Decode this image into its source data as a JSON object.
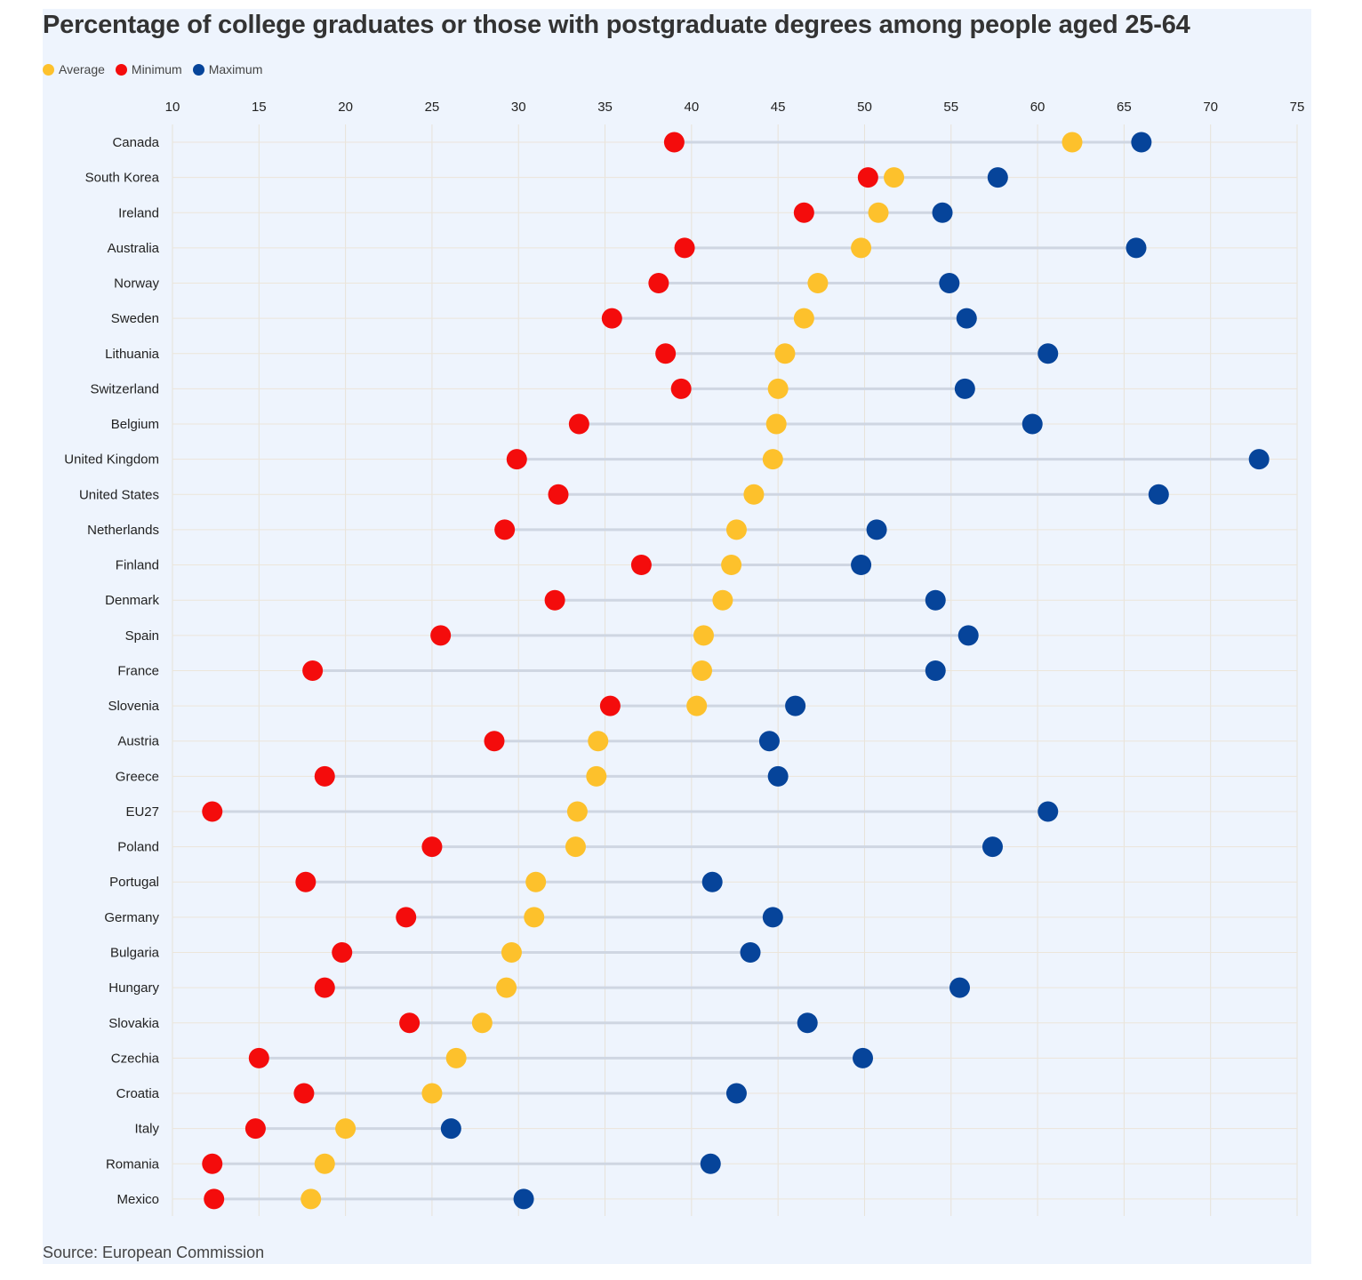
{
  "chart_data": {
    "type": "dumbbell",
    "title": "Percentage of college graduates or those with postgraduate degrees among people aged 25-64",
    "source": "Source: European Commission",
    "xlim": [
      10,
      75
    ],
    "xticks": [
      10,
      15,
      20,
      25,
      30,
      35,
      40,
      45,
      50,
      55,
      60,
      65,
      70,
      75
    ],
    "legend": [
      {
        "name": "Average",
        "color": "#fdc12c"
      },
      {
        "name": "Minimum",
        "color": "#f40c0c"
      },
      {
        "name": "Maximum",
        "color": "#06449a"
      }
    ],
    "categories": [
      "Canada",
      "South Korea",
      "Ireland",
      "Australia",
      "Norway",
      "Sweden",
      "Lithuania",
      "Switzerland",
      "Belgium",
      "United Kingdom",
      "United States",
      "Netherlands",
      "Finland",
      "Denmark",
      "Spain",
      "France",
      "Slovenia",
      "Austria",
      "Greece",
      "EU27",
      "Poland",
      "Portugal",
      "Germany",
      "Bulgaria",
      "Hungary",
      "Slovakia",
      "Czechia",
      "Croatia",
      "Italy",
      "Romania",
      "Mexico"
    ],
    "series": [
      {
        "name": "Average",
        "values": [
          62.0,
          51.7,
          50.8,
          49.8,
          47.3,
          46.5,
          45.4,
          45.0,
          44.9,
          44.7,
          43.6,
          42.6,
          42.3,
          41.8,
          40.7,
          40.6,
          40.3,
          34.6,
          34.5,
          33.4,
          33.3,
          31.0,
          30.9,
          29.6,
          29.3,
          27.9,
          26.4,
          25.0,
          20.0,
          18.8,
          18.0
        ]
      },
      {
        "name": "Minimum",
        "values": [
          39.0,
          50.2,
          46.5,
          39.6,
          38.1,
          35.4,
          38.5,
          39.4,
          33.5,
          29.9,
          32.3,
          29.2,
          37.1,
          32.1,
          25.5,
          18.1,
          35.3,
          28.6,
          18.8,
          12.3,
          25.0,
          17.7,
          23.5,
          19.8,
          18.8,
          23.7,
          15.0,
          17.6,
          14.8,
          12.3,
          12.4
        ]
      },
      {
        "name": "Maximum",
        "values": [
          66.0,
          57.7,
          54.5,
          65.7,
          54.9,
          55.9,
          60.6,
          55.8,
          59.7,
          72.8,
          67.0,
          50.7,
          49.8,
          54.1,
          56.0,
          54.1,
          46.0,
          44.5,
          45.0,
          60.6,
          57.4,
          41.2,
          44.7,
          43.4,
          55.5,
          46.7,
          49.9,
          42.6,
          26.1,
          41.1,
          30.3
        ]
      }
    ]
  }
}
